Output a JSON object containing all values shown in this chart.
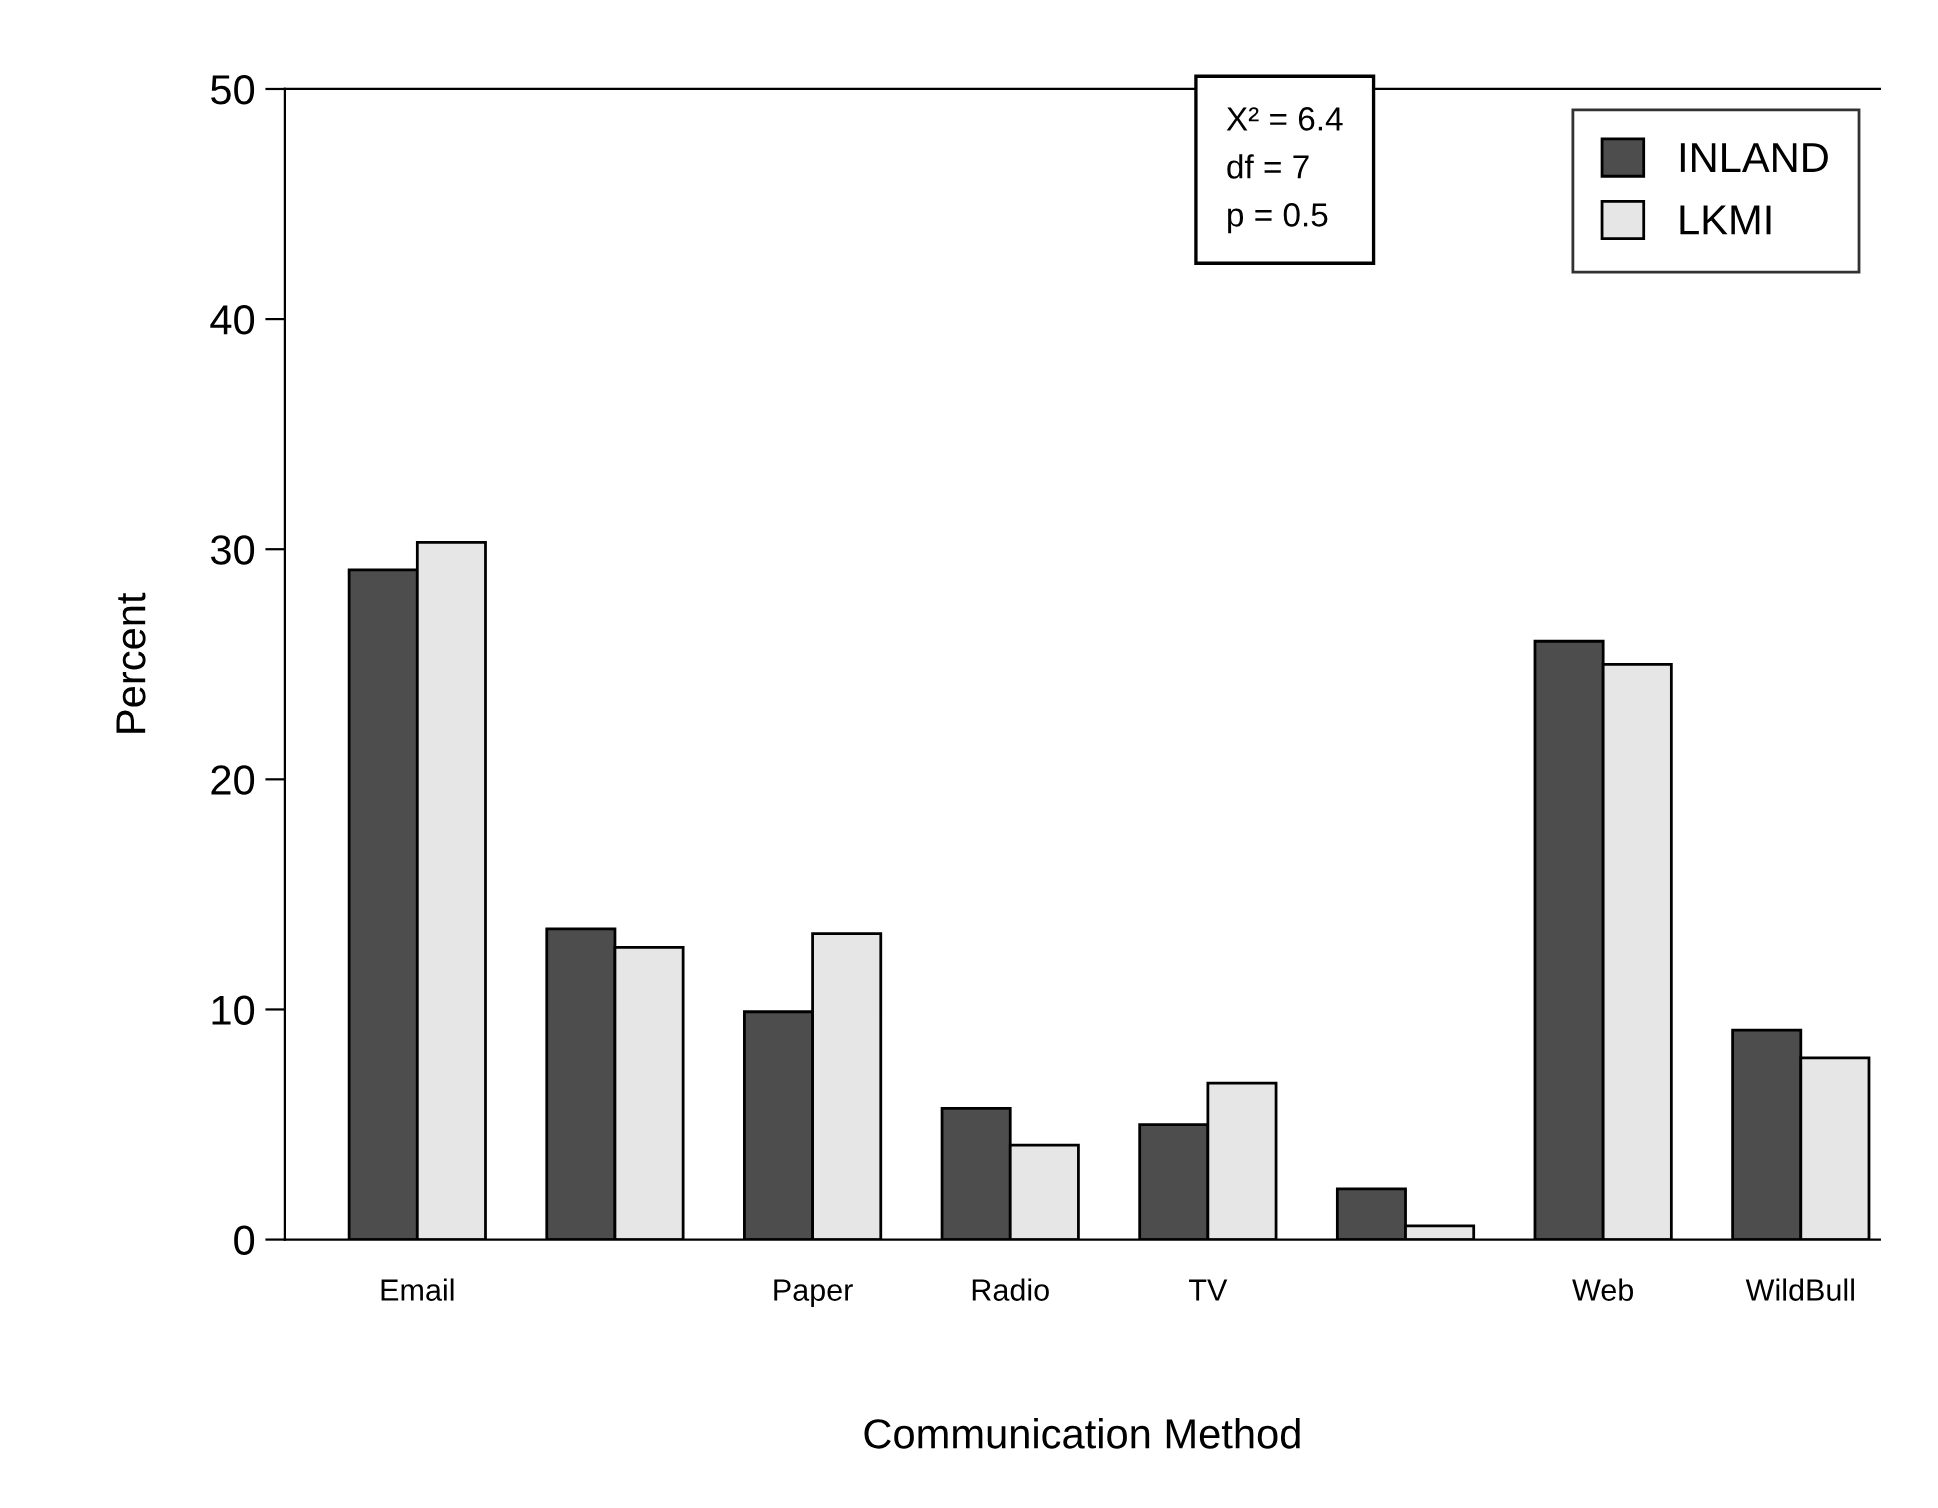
{
  "chart_data": {
    "type": "bar",
    "xlabel": "Communication Method",
    "ylabel": "Percent",
    "categories": [
      "Email",
      null,
      "Paper",
      "Radio",
      "TV",
      null,
      "Web",
      "WildBull"
    ],
    "series": [
      {
        "name": "INLAND",
        "color": "#4d4d4d",
        "values": [
          29.1,
          13.5,
          9.9,
          5.7,
          5.0,
          2.2,
          26.0,
          9.1
        ]
      },
      {
        "name": "LKMI",
        "color": "#e6e6e6",
        "values": [
          30.3,
          12.7,
          13.3,
          4.1,
          6.8,
          0.6,
          25.0,
          7.9
        ]
      }
    ],
    "ylim": [
      0,
      50
    ],
    "yticks": [
      0,
      10,
      20,
      30,
      40,
      50
    ],
    "grid": false,
    "legend": "top right",
    "annotations": [
      "X² = 6.4",
      "df = 7",
      "p = 0.5"
    ]
  }
}
